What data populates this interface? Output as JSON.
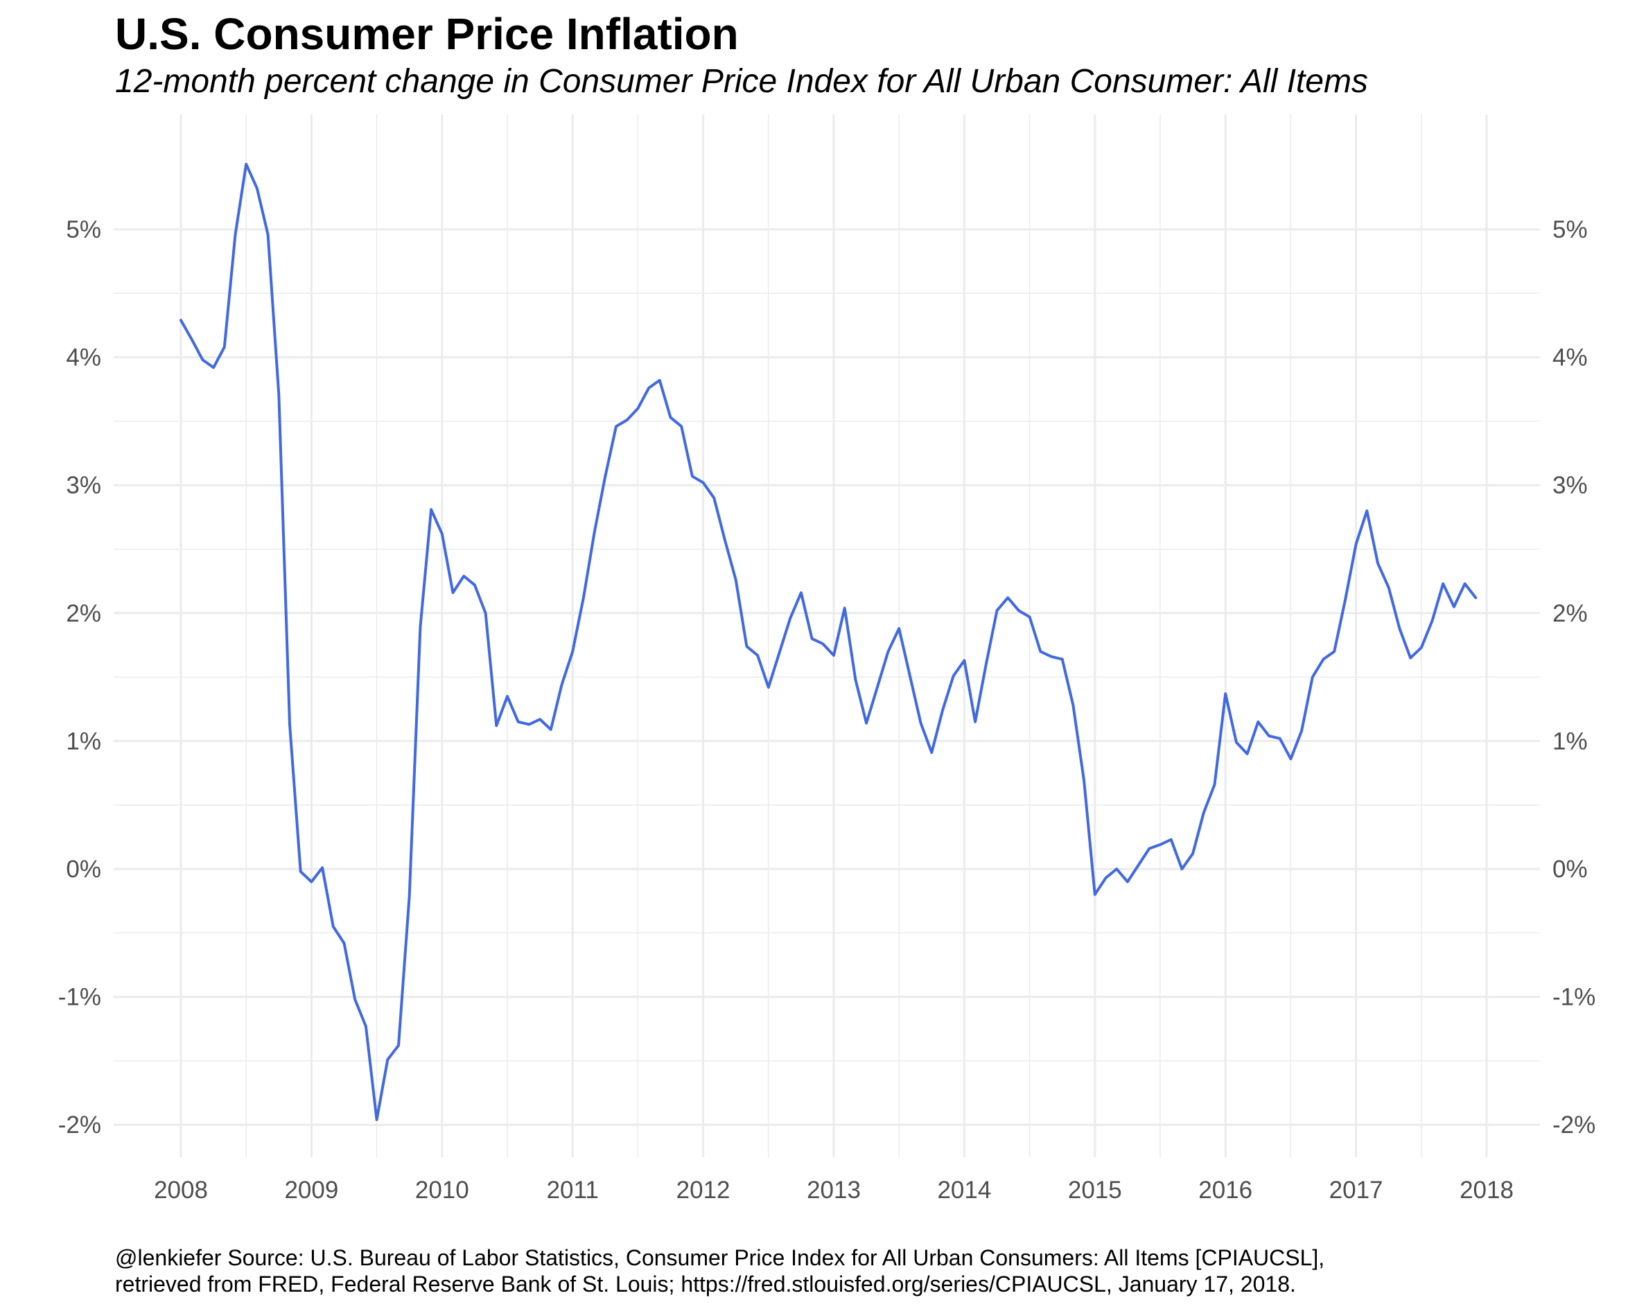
{
  "title": "U.S. Consumer Price Inflation",
  "subtitle": "12-month percent change in Consumer Price Index for All Urban Consumer: All Items",
  "caption": [
    "@lenkiefer Source: U.S. Bureau of Labor Statistics, Consumer Price Index for All Urban Consumers: All Items [CPIAUCSL],",
    "retrieved from FRED, Federal Reserve Bank of St. Louis; https://fred.stlouisfed.org/series/CPIAUCSL, January 17, 2018."
  ],
  "colors": {
    "line": "#4169E1",
    "grid": "#ebebeb",
    "tick_text": "#4d4d4d"
  },
  "chart_data": {
    "type": "line",
    "title": "U.S. Consumer Price Inflation",
    "subtitle": "12-month percent change in Consumer Price Index for All Urban Consumer: All Items",
    "xlabel": "",
    "ylabel": "",
    "grid": true,
    "legend": "none",
    "secondary_y_axis": "right, duplicated labels",
    "xlim": [
      "2007-12-01",
      "2018-03-01"
    ],
    "ylim": [
      -2.3,
      5.8
    ],
    "x_ticks": [
      {
        "date": "2008-01-01",
        "label": "2008"
      },
      {
        "date": "2009-01-01",
        "label": "2009"
      },
      {
        "date": "2010-01-01",
        "label": "2010"
      },
      {
        "date": "2011-01-01",
        "label": "2011"
      },
      {
        "date": "2012-01-01",
        "label": "2012"
      },
      {
        "date": "2013-01-01",
        "label": "2013"
      },
      {
        "date": "2014-01-01",
        "label": "2014"
      },
      {
        "date": "2015-01-01",
        "label": "2015"
      },
      {
        "date": "2016-01-01",
        "label": "2016"
      },
      {
        "date": "2017-01-01",
        "label": "2017"
      },
      {
        "date": "2018-01-01",
        "label": "2018"
      }
    ],
    "y_ticks": [
      {
        "value": -2,
        "label": "-2%"
      },
      {
        "value": -1,
        "label": "-1%"
      },
      {
        "value": 0,
        "label": "0%"
      },
      {
        "value": 1,
        "label": "1%"
      },
      {
        "value": 2,
        "label": "2%"
      },
      {
        "value": 3,
        "label": "3%"
      },
      {
        "value": 4,
        "label": "4%"
      },
      {
        "value": 5,
        "label": "5%"
      }
    ],
    "series": [
      {
        "start": "2008-01",
        "frequency": "monthly",
        "unit": "percent",
        "values": [
          4.29,
          4.14,
          3.98,
          3.92,
          4.08,
          4.96,
          5.51,
          5.32,
          4.96,
          3.71,
          1.13,
          -0.02,
          -0.1,
          0.01,
          -0.45,
          -0.58,
          -1.02,
          -1.23,
          -1.96,
          -1.49,
          -1.38,
          -0.21,
          1.89,
          2.81,
          2.62,
          2.16,
          2.29,
          2.22,
          2.0,
          1.12,
          1.35,
          1.15,
          1.13,
          1.17,
          1.09,
          1.44,
          1.7,
          2.12,
          2.63,
          3.07,
          3.46,
          3.51,
          3.6,
          3.76,
          3.82,
          3.53,
          3.46,
          3.07,
          3.02,
          2.9,
          2.57,
          2.26,
          1.74,
          1.67,
          1.42,
          1.69,
          1.96,
          2.16,
          1.8,
          1.76,
          1.67,
          2.04,
          1.48,
          1.14,
          1.42,
          1.7,
          1.88,
          1.51,
          1.14,
          0.91,
          1.24,
          1.51,
          1.63,
          1.15,
          1.6,
          2.02,
          2.12,
          2.02,
          1.97,
          1.7,
          1.66,
          1.64,
          1.28,
          0.69,
          -0.2,
          -0.07,
          0.0,
          -0.1,
          0.03,
          0.16,
          0.19,
          0.23,
          0.0,
          0.12,
          0.44,
          0.66,
          1.37,
          0.99,
          0.9,
          1.15,
          1.04,
          1.02,
          0.86,
          1.08,
          1.5,
          1.64,
          1.7,
          2.1,
          2.54,
          2.8,
          2.39,
          2.2,
          1.88,
          1.65,
          1.73,
          1.94,
          2.23,
          2.05,
          2.23,
          2.12
        ]
      }
    ]
  }
}
